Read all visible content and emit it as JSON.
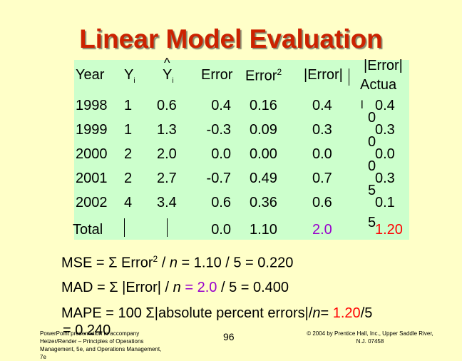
{
  "title": "Linear Model Evaluation",
  "headers": {
    "year": "Year",
    "y_main": "Y",
    "y_sub": "i",
    "yhat_hat": "^",
    "yhat_main": "Y",
    "yhat_sub": "i",
    "error": "Error",
    "error2_main": "Error",
    "error2_sup": "2",
    "abs_error": "|Error|",
    "pct_line1": "|Error|",
    "pct_line2": "Actua"
  },
  "rows": [
    {
      "year": "1998",
      "y": "1",
      "yhat": "0.6",
      "error": "0.4",
      "error2": "0.16",
      "abs": "0.4",
      "pct": "0.4",
      "pct_frag": "0"
    },
    {
      "year": "1999",
      "y": "1",
      "yhat": "1.3",
      "error": "-0.3",
      "error2": "0.09",
      "abs": "0.3",
      "pct": "0.3",
      "pct_frag": "0"
    },
    {
      "year": "2000",
      "y": "2",
      "yhat": "2.0",
      "error": "0.0",
      "error2": "0.00",
      "abs": "0.0",
      "pct": "0.0",
      "pct_frag": "0"
    },
    {
      "year": "2001",
      "y": "2",
      "yhat": "2.7",
      "error": "-0.7",
      "error2": "0.49",
      "abs": "0.7",
      "pct": "0.3",
      "pct_frag": "5"
    },
    {
      "year": "2002",
      "y": "4",
      "yhat": "3.4",
      "error": "0.6",
      "error2": "0.36",
      "abs": "0.6",
      "pct": "0.1",
      "pct_frag": "5"
    }
  ],
  "pct_top_frag": "l",
  "totals": {
    "label": "Total",
    "error": "0.0",
    "error2": "1.10",
    "abs": "2.0",
    "pct": "1.20"
  },
  "formulas": {
    "mse": {
      "prefix": "MSE  = Σ Error",
      "sup": "2",
      "mid": " / ",
      "n": "n",
      "rest": "  =  1.10 / 5  =  0.220"
    },
    "mad": {
      "prefix": "MAD  = Σ |Error| / ",
      "n": "n",
      "eq": "  =  ",
      "val": "2.0",
      "rest": " / 5  =  0.400"
    },
    "mape": {
      "prefix": "MAPE = 100 Σ|absolute percent errors|/",
      "n": "n",
      "eq": "= ",
      "val": "1.20",
      "rest": "/5",
      "line2": "= 0.240"
    }
  },
  "footer": {
    "left": [
      "PowerPoint presentation to accompany",
      "Heizer/Render – Principles of Operations",
      "Management, 5e, and Operations Management,",
      "7e"
    ],
    "page": "96",
    "right": [
      "© 2004 by Prentice Hall, Inc., Upper Saddle River,",
      "N.J. 07458"
    ]
  },
  "colors": {
    "background": "#ffffc8",
    "table_bg": "#ccffcc",
    "title": "#cc2200",
    "abs_total": "#9900cc",
    "pct_total": "#ff0000"
  }
}
